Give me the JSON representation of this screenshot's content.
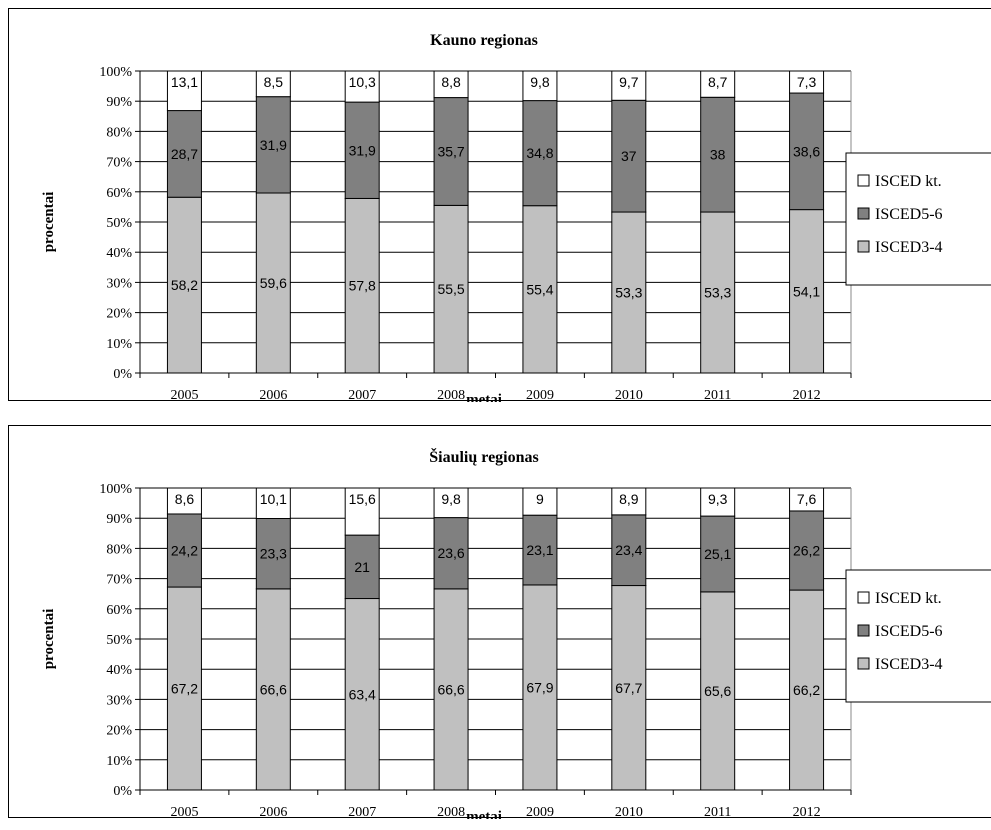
{
  "chart_data": [
    {
      "type": "bar",
      "stacked": true,
      "title": "Kauno regionas",
      "xlabel": "metai",
      "ylabel": "procentai",
      "ylim": [
        0,
        100
      ],
      "y_ticks": [
        "0%",
        "10%",
        "20%",
        "30%",
        "40%",
        "50%",
        "60%",
        "70%",
        "80%",
        "90%",
        "100%"
      ],
      "grid": true,
      "legend_position": "right",
      "categories": [
        "2005",
        "2006",
        "2007",
        "2008",
        "2009",
        "2010",
        "2011",
        "2012"
      ],
      "series": [
        {
          "name": "ISCED3-4",
          "color": "#c0c0c0",
          "values": [
            58.2,
            59.6,
            57.8,
            55.5,
            55.4,
            53.3,
            53.3,
            54.1
          ],
          "labels": [
            "58,2",
            "59,6",
            "57,8",
            "55,5",
            "55,4",
            "53,3",
            "53,3",
            "54,1"
          ]
        },
        {
          "name": "ISCED5-6",
          "color": "#808080",
          "values": [
            28.7,
            31.9,
            31.9,
            35.7,
            34.8,
            37,
            38,
            38.6
          ],
          "labels": [
            "28,7",
            "31,9",
            "31,9",
            "35,7",
            "34,8",
            "37",
            "38",
            "38,6"
          ]
        },
        {
          "name": "ISCED kt.",
          "color": "#ffffff",
          "values": [
            13.1,
            8.5,
            10.3,
            8.8,
            9.8,
            9.7,
            8.7,
            7.3
          ],
          "labels": [
            "13,1",
            "8,5",
            "10,3",
            "8,8",
            "9,8",
            "9,7",
            "8,7",
            "7,3"
          ]
        }
      ],
      "legend": [
        "ISCED kt.",
        "ISCED5-6",
        "ISCED3-4"
      ]
    },
    {
      "type": "bar",
      "stacked": true,
      "title": "Šiaulių regionas",
      "xlabel": "metai",
      "ylabel": "procentai",
      "ylim": [
        0,
        100
      ],
      "y_ticks": [
        "0%",
        "10%",
        "20%",
        "30%",
        "40%",
        "50%",
        "60%",
        "70%",
        "80%",
        "90%",
        "100%"
      ],
      "grid": true,
      "legend_position": "right",
      "categories": [
        "2005",
        "2006",
        "2007",
        "2008",
        "2009",
        "2010",
        "2011",
        "2012"
      ],
      "series": [
        {
          "name": "ISCED3-4",
          "color": "#c0c0c0",
          "values": [
            67.2,
            66.6,
            63.4,
            66.6,
            67.9,
            67.7,
            65.6,
            66.2
          ],
          "labels": [
            "67,2",
            "66,6",
            "63,4",
            "66,6",
            "67,9",
            "67,7",
            "65,6",
            "66,2"
          ]
        },
        {
          "name": "ISCED5-6",
          "color": "#808080",
          "values": [
            24.2,
            23.3,
            21,
            23.6,
            23.1,
            23.4,
            25.1,
            26.2
          ],
          "labels": [
            "24,2",
            "23,3",
            "21",
            "23,6",
            "23,1",
            "23,4",
            "25,1",
            "26,2"
          ]
        },
        {
          "name": "ISCED kt.",
          "color": "#ffffff",
          "values": [
            8.6,
            10.1,
            15.6,
            9.8,
            9,
            8.9,
            9.3,
            7.6
          ],
          "labels": [
            "8,6",
            "10,1",
            "15,6",
            "9,8",
            "9",
            "8,9",
            "9,3",
            "7,6"
          ]
        }
      ],
      "legend": [
        "ISCED kt.",
        "ISCED5-6",
        "ISCED3-4"
      ]
    }
  ]
}
